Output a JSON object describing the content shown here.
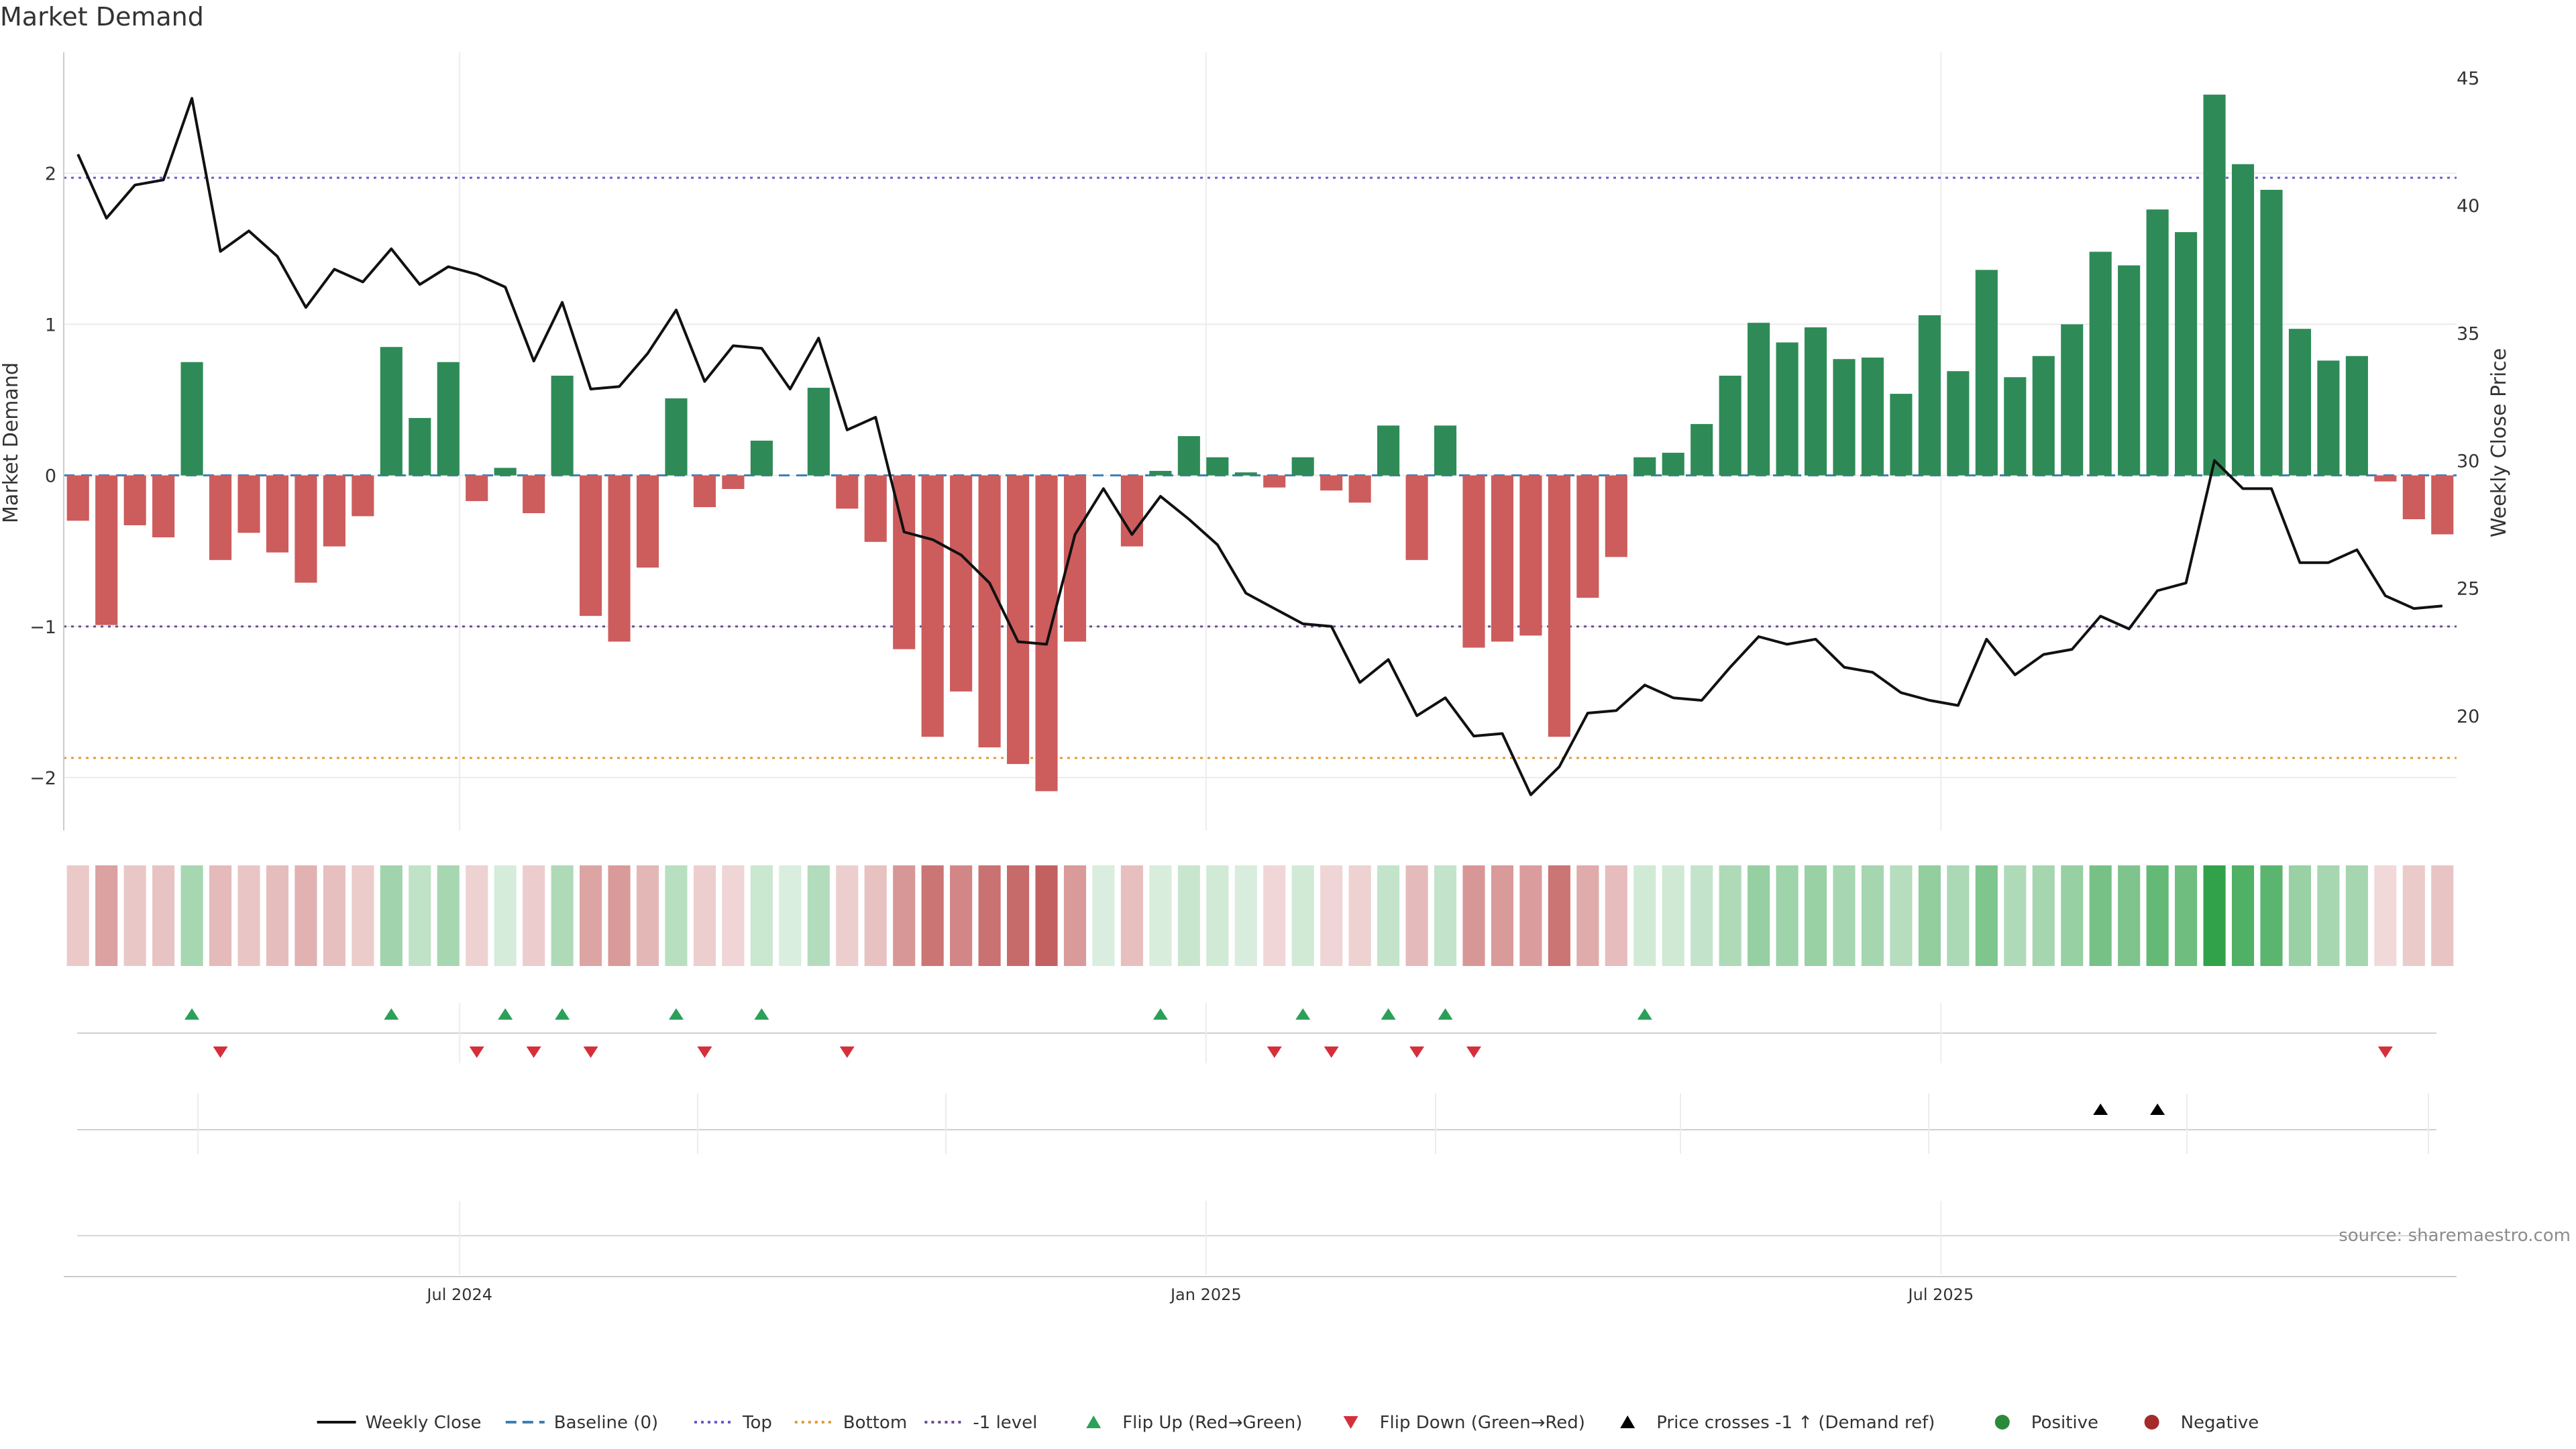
{
  "chart_data": {
    "type": "bar",
    "title": "Market Demand",
    "ylabel": "Market Demand",
    "y2label": "Weekly Close Price",
    "ylim": [
      -2.35,
      2.8
    ],
    "y2lim": [
      15.5,
      46.0
    ],
    "yticks": [
      {
        "value": 2,
        "label": "2"
      },
      {
        "value": 1,
        "label": "1"
      },
      {
        "value": 0,
        "label": "0"
      },
      {
        "value": -1,
        "label": "−1"
      },
      {
        "value": -2,
        "label": "−2"
      }
    ],
    "y2ticks": [
      {
        "value": 45,
        "label": "45"
      },
      {
        "value": 40,
        "label": "40"
      },
      {
        "value": 35,
        "label": "35"
      },
      {
        "value": 30,
        "label": "30"
      },
      {
        "value": 25,
        "label": "25"
      },
      {
        "value": 20,
        "label": "20"
      }
    ],
    "xticks": [
      {
        "index": 13.4,
        "label": "Jul 2024"
      },
      {
        "index": 39.6,
        "label": "Jan 2025"
      },
      {
        "index": 65.4,
        "label": "Jul 2025"
      }
    ],
    "reference_lines": {
      "top": 1.97,
      "bottom": -1.87,
      "minus_one": -1,
      "baseline": 0
    },
    "demand": [
      -0.3,
      -0.99,
      -0.33,
      -0.41,
      0.75,
      -0.56,
      -0.38,
      -0.51,
      -0.71,
      -0.47,
      -0.27,
      0.85,
      0.38,
      0.75,
      -0.17,
      0.05,
      -0.25,
      0.66,
      -0.93,
      -1.1,
      -0.61,
      0.51,
      -0.21,
      -0.09,
      0.23,
      0,
      0.58,
      -0.22,
      -0.44,
      -1.15,
      -1.73,
      -1.43,
      -1.8,
      -1.91,
      -2.09,
      -1.1,
      0,
      -0.47,
      0.03,
      0.26,
      0.12,
      0.02,
      -0.08,
      0.12,
      -0.1,
      -0.18,
      0.33,
      -0.56,
      0.33,
      -1.14,
      -1.1,
      -1.06,
      -1.73,
      -0.81,
      -0.54,
      0.12,
      0.15,
      0.34,
      0.66,
      1.01,
      0.88,
      0.98,
      0.77,
      0.78,
      0.54,
      1.06,
      0.69,
      1.36,
      0.65,
      0.79,
      1,
      1.48,
      1.39,
      1.76,
      1.61,
      2.52,
      2.06,
      1.89,
      0.97,
      0.76,
      0.79,
      -0.04,
      -0.29,
      -0.39
    ],
    "weekly_close": [
      42.0,
      39.5,
      40.8,
      41.0,
      44.2,
      38.2,
      39.0,
      38.0,
      36.0,
      37.5,
      37.0,
      38.3,
      36.9,
      37.6,
      37.3,
      36.8,
      33.9,
      36.2,
      32.8,
      32.9,
      34.2,
      35.9,
      33.1,
      34.5,
      34.4,
      32.8,
      34.8,
      31.2,
      31.7,
      27.2,
      26.9,
      26.3,
      25.2,
      22.9,
      22.8,
      27.1,
      28.9,
      27.1,
      28.6,
      27.7,
      26.7,
      24.8,
      24.2,
      23.6,
      23.5,
      21.3,
      22.2,
      20.0,
      20.7,
      19.2,
      19.3,
      16.9,
      18.0,
      20.1,
      20.2,
      21.2,
      20.7,
      20.6,
      21.9,
      23.1,
      22.8,
      23.0,
      21.9,
      21.7,
      20.9,
      20.6,
      20.4,
      23.0,
      21.6,
      22.4,
      22.6,
      23.9,
      23.4,
      24.9,
      25.2,
      30.0,
      28.9,
      28.9,
      26.0,
      26.0,
      26.5,
      24.7,
      24.2,
      24.3
    ],
    "flip_up_index": [
      4,
      11,
      15,
      17,
      21,
      24,
      38,
      43,
      46,
      48,
      55
    ],
    "flip_down_index": [
      5,
      14,
      16,
      18,
      22,
      27,
      42,
      44,
      47,
      49,
      81
    ],
    "price_cross_index": [
      71,
      73
    ],
    "source": "source: sharemaestro.com",
    "legend": [
      {
        "label": "Weekly Close",
        "marker": "solid-line",
        "color": "#111111"
      },
      {
        "label": "Baseline (0)",
        "marker": "dashed-line",
        "color": "#3b7fb5"
      },
      {
        "label": "Top",
        "marker": "dotted-line",
        "color": "#6a5acd"
      },
      {
        "label": "Bottom",
        "marker": "dotted-line",
        "color": "#e39c2f"
      },
      {
        "label": "-1 level",
        "marker": "dotted-line",
        "color": "#6a4c93"
      },
      {
        "label": "Flip Up (Red→Green)",
        "marker": "triangle-up",
        "color": "#2ca05a"
      },
      {
        "label": "Flip Down (Green→Red)",
        "marker": "triangle-down",
        "color": "#d62f3a"
      },
      {
        "label": "Price crosses -1 ↑ (Demand ref)",
        "marker": "triangle-up",
        "color": "#000000"
      },
      {
        "label": "Positive",
        "marker": "circle",
        "color": "#2a8a3a"
      },
      {
        "label": "Negative",
        "marker": "circle",
        "color": "#a52a2a"
      }
    ],
    "colors": {
      "positive_bar": "#2e8b57",
      "negative_bar": "#cd5c5c",
      "line": "#111111",
      "grid": "#ececec",
      "axis": "#cccccc"
    }
  }
}
